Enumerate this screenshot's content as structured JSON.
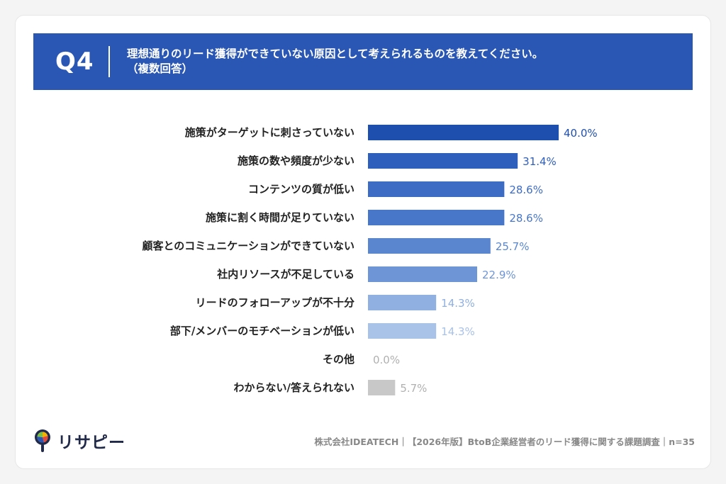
{
  "header": {
    "q_label": "Q4",
    "question": "理想通りのリード獲得ができていない原因として考えられるものを教えてください。",
    "note": "（複数回答）"
  },
  "chart_data": {
    "type": "bar",
    "orientation": "horizontal",
    "categories": [
      "施策がターゲットに刺さっていない",
      "施策の数や頻度が少ない",
      "コンテンツの質が低い",
      "施策に割く時間が足りていない",
      "顧客とのコミュニケーションができていない",
      "社内リソースが不足している",
      "リードのフォローアップが不十分",
      "部下/メンバーのモチベーションが低い",
      "その他",
      "わからない/答えられない"
    ],
    "values": [
      40.0,
      31.4,
      28.6,
      28.6,
      25.7,
      22.9,
      14.3,
      14.3,
      0.0,
      5.7
    ],
    "value_labels": [
      "40.0%",
      "31.4%",
      "28.6%",
      "28.6%",
      "25.7%",
      "22.9%",
      "14.3%",
      "14.3%",
      "0.0%",
      "5.7%"
    ],
    "unit": "%",
    "xlim": [
      0,
      40
    ],
    "grid": false,
    "legend": "none",
    "bar_colors": [
      "#1f4fae",
      "#2f5fbc",
      "#3d6cc4",
      "#4877c9",
      "#5a86cf",
      "#6e96d6",
      "#8fb0e0",
      "#a9c2e8",
      "#c8c8c8",
      "#c8c8c8"
    ],
    "label_colors": [
      "#1f4fae",
      "#2f5fbc",
      "#3d6cc4",
      "#4877c9",
      "#5a86cf",
      "#6e96d6",
      "#8fb0e0",
      "#a9c2e8",
      "#b0b0b0",
      "#b0b0b0"
    ]
  },
  "footer": {
    "source": "株式会社IDEATECH｜【2026年版】BtoB企業経営者のリード獲得に関する課題調査｜n=35",
    "logo_text": "リサピー",
    "logo_icon": "magnifier-pin-icon"
  }
}
